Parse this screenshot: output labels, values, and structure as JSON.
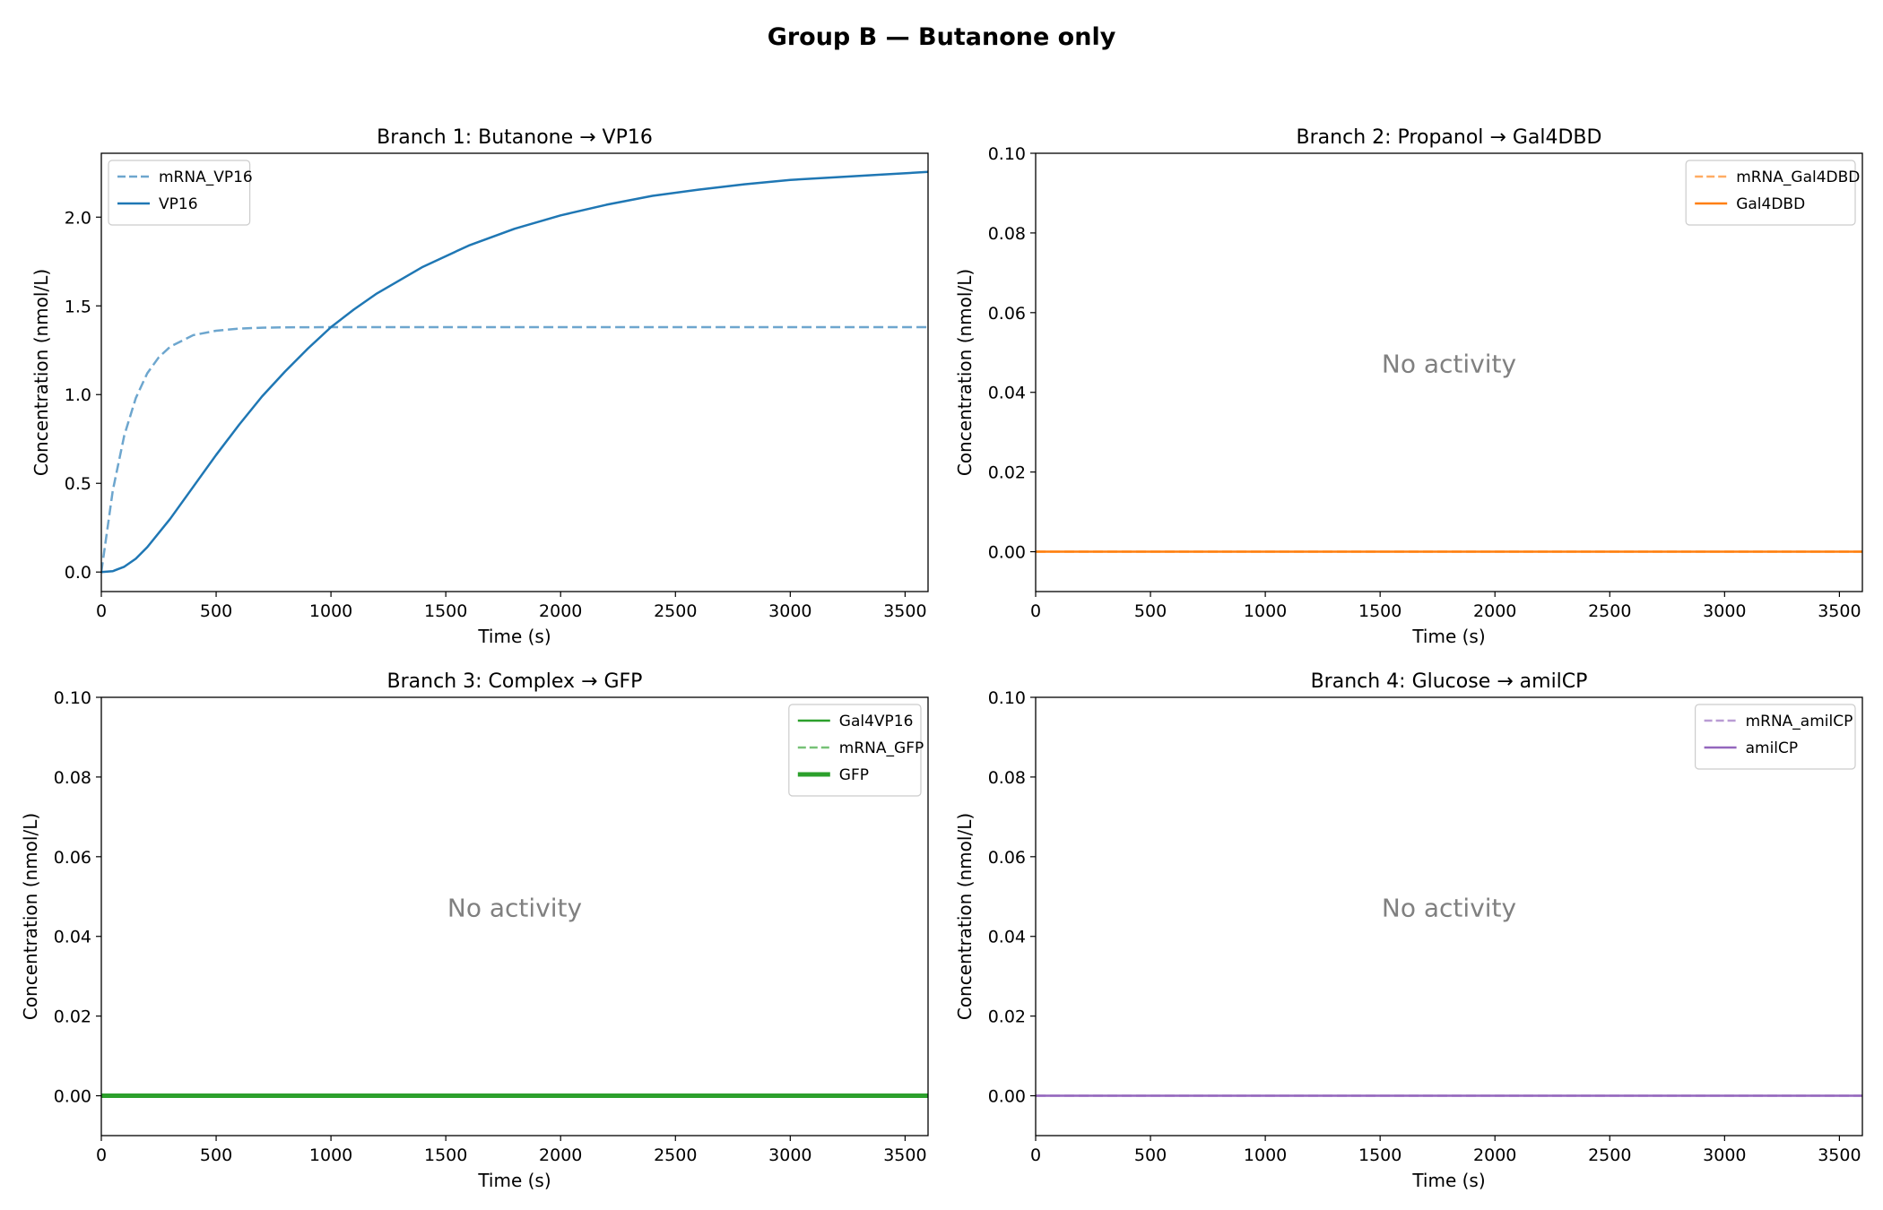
{
  "figure": {
    "title": "Group B — Butanone only"
  },
  "chart_data": [
    {
      "type": "line",
      "title": "Branch 1: Butanone → VP16",
      "xlabel": "Time (s)",
      "ylabel": "Concentration (nmol/L)",
      "xlim": [
        0,
        3600
      ],
      "ylim": [
        -0.11,
        2.36
      ],
      "xticks": [
        0,
        500,
        1000,
        1500,
        2000,
        2500,
        3000,
        3500
      ],
      "yticks": [
        0.0,
        0.5,
        1.0,
        1.5,
        2.0
      ],
      "ytick_labels": [
        "0.0",
        "0.5",
        "1.0",
        "1.5",
        "2.0"
      ],
      "grid": false,
      "legend_loc": "upper left",
      "annotation": "",
      "series": [
        {
          "name": "mRNA_VP16",
          "color": "#1f77b4",
          "dash": "dashed",
          "width": 2.5,
          "opacity": 0.65,
          "x": [
            0,
            50,
            100,
            150,
            200,
            250,
            300,
            400,
            500,
            600,
            700,
            800,
            1000,
            1200,
            1500,
            2000,
            2500,
            3000,
            3600
          ],
          "y": [
            0,
            0.46,
            0.77,
            0.98,
            1.12,
            1.21,
            1.27,
            1.335,
            1.36,
            1.372,
            1.377,
            1.379,
            1.38,
            1.38,
            1.38,
            1.38,
            1.38,
            1.38,
            1.38
          ]
        },
        {
          "name": "VP16",
          "color": "#1f77b4",
          "dash": "solid",
          "width": 2.5,
          "opacity": 1,
          "x": [
            0,
            50,
            100,
            150,
            200,
            300,
            400,
            500,
            600,
            700,
            800,
            900,
            1000,
            1100,
            1200,
            1400,
            1600,
            1800,
            2000,
            2200,
            2400,
            2600,
            2800,
            3000,
            3200,
            3400,
            3600
          ],
          "y": [
            0,
            0.005,
            0.03,
            0.075,
            0.14,
            0.3,
            0.48,
            0.66,
            0.83,
            0.99,
            1.13,
            1.26,
            1.38,
            1.48,
            1.57,
            1.72,
            1.84,
            1.935,
            2.01,
            2.07,
            2.12,
            2.155,
            2.185,
            2.21,
            2.225,
            2.24,
            2.255
          ]
        }
      ]
    },
    {
      "type": "line",
      "title": "Branch 2: Propanol → Gal4DBD",
      "xlabel": "Time (s)",
      "ylabel": "Concentration (nmol/L)",
      "xlim": [
        0,
        3600
      ],
      "ylim": [
        -0.01,
        0.1
      ],
      "xticks": [
        0,
        500,
        1000,
        1500,
        2000,
        2500,
        3000,
        3500
      ],
      "yticks": [
        0.0,
        0.02,
        0.04,
        0.06,
        0.08,
        0.1
      ],
      "ytick_labels": [
        "0.00",
        "0.02",
        "0.04",
        "0.06",
        "0.08",
        "0.10"
      ],
      "grid": false,
      "legend_loc": "upper right",
      "annotation": "No activity",
      "series": [
        {
          "name": "mRNA_Gal4DBD",
          "color": "#ff7f0e",
          "dash": "dashed",
          "width": 2.5,
          "opacity": 0.65,
          "x": [
            0,
            3600
          ],
          "y": [
            0,
            0
          ]
        },
        {
          "name": "Gal4DBD",
          "color": "#ff7f0e",
          "dash": "solid",
          "width": 2.5,
          "opacity": 1,
          "x": [
            0,
            3600
          ],
          "y": [
            0,
            0
          ]
        }
      ]
    },
    {
      "type": "line",
      "title": "Branch 3: Complex → GFP",
      "xlabel": "Time (s)",
      "ylabel": "Concentration (nmol/L)",
      "xlim": [
        0,
        3600
      ],
      "ylim": [
        -0.01,
        0.1
      ],
      "xticks": [
        0,
        500,
        1000,
        1500,
        2000,
        2500,
        3000,
        3500
      ],
      "yticks": [
        0.0,
        0.02,
        0.04,
        0.06,
        0.08,
        0.1
      ],
      "ytick_labels": [
        "0.00",
        "0.02",
        "0.04",
        "0.06",
        "0.08",
        "0.10"
      ],
      "grid": false,
      "legend_loc": "upper right",
      "annotation": "No activity",
      "series": [
        {
          "name": "Gal4VP16",
          "color": "#2ca02c",
          "dash": "solid",
          "width": 2.5,
          "opacity": 1,
          "x": [
            0,
            3600
          ],
          "y": [
            0,
            0
          ]
        },
        {
          "name": "mRNA_GFP",
          "color": "#2ca02c",
          "dash": "dashed",
          "width": 2.5,
          "opacity": 0.65,
          "x": [
            0,
            3600
          ],
          "y": [
            0,
            0
          ]
        },
        {
          "name": "GFP",
          "color": "#2ca02c",
          "dash": "solid",
          "width": 5,
          "opacity": 1,
          "x": [
            0,
            3600
          ],
          "y": [
            0,
            0
          ]
        }
      ]
    },
    {
      "type": "line",
      "title": "Branch 4: Glucose → amilCP",
      "xlabel": "Time (s)",
      "ylabel": "Concentration (nmol/L)",
      "xlim": [
        0,
        3600
      ],
      "ylim": [
        -0.01,
        0.1
      ],
      "xticks": [
        0,
        500,
        1000,
        1500,
        2000,
        2500,
        3000,
        3500
      ],
      "yticks": [
        0.0,
        0.02,
        0.04,
        0.06,
        0.08,
        0.1
      ],
      "ytick_labels": [
        "0.00",
        "0.02",
        "0.04",
        "0.06",
        "0.08",
        "0.10"
      ],
      "grid": false,
      "legend_loc": "upper right",
      "annotation": "No activity",
      "series": [
        {
          "name": "mRNA_amilCP",
          "color": "#9467bd",
          "dash": "dashed",
          "width": 2.5,
          "opacity": 0.65,
          "x": [
            0,
            3600
          ],
          "y": [
            0,
            0
          ]
        },
        {
          "name": "amilCP",
          "color": "#9467bd",
          "dash": "solid",
          "width": 2.5,
          "opacity": 1,
          "x": [
            0,
            3600
          ],
          "y": [
            0,
            0
          ]
        }
      ]
    }
  ]
}
